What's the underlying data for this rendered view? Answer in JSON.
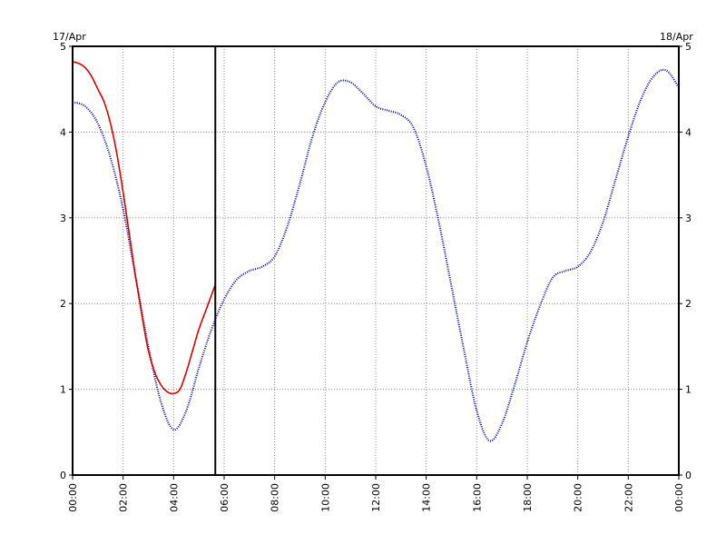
{
  "chart_data": {
    "type": "line",
    "date_start": "17/Apr",
    "date_end": "18/Apr",
    "xlim": [
      0,
      24
    ],
    "ylim": [
      0,
      5
    ],
    "yticks": [
      0,
      1,
      2,
      3,
      4,
      5
    ],
    "xticks": [
      "00:00",
      "02:00",
      "04:00",
      "06:00",
      "08:00",
      "10:00",
      "12:00",
      "14:00",
      "16:00",
      "18:00",
      "20:00",
      "22:00",
      "00:00"
    ],
    "grid": true,
    "now_marker_hour": 5.65,
    "series": [
      {
        "color": "#00009c",
        "style": "dotted",
        "x": [
          0,
          0.5,
          1,
          1.5,
          2,
          2.5,
          3,
          3.5,
          4,
          4.5,
          5,
          5.5,
          6,
          6.5,
          7,
          7.5,
          8,
          8.5,
          9,
          9.5,
          10,
          10.5,
          11,
          11.5,
          12,
          12.5,
          13,
          13.5,
          14,
          14.5,
          15,
          15.5,
          16,
          16.5,
          17,
          17.5,
          18,
          18.5,
          19,
          19.5,
          20,
          20.5,
          21,
          21.5,
          22,
          22.5,
          23,
          23.5,
          24
        ],
        "y": [
          4.35,
          4.3,
          4.1,
          3.7,
          3.1,
          2.3,
          1.5,
          0.85,
          0.53,
          0.75,
          1.25,
          1.7,
          2.05,
          2.28,
          2.38,
          2.43,
          2.55,
          2.9,
          3.4,
          3.95,
          4.35,
          4.58,
          4.58,
          4.45,
          4.3,
          4.25,
          4.2,
          4.05,
          3.6,
          2.95,
          2.2,
          1.45,
          0.75,
          0.4,
          0.6,
          1.05,
          1.55,
          1.97,
          2.3,
          2.38,
          2.43,
          2.6,
          2.95,
          3.45,
          3.95,
          4.38,
          4.65,
          4.72,
          4.52
        ]
      },
      {
        "color": "#dd0000",
        "style": "solid",
        "x": [
          0,
          0.25,
          0.5,
          0.75,
          1,
          1.25,
          1.5,
          1.75,
          2,
          2.25,
          2.5,
          2.75,
          3,
          3.25,
          3.5,
          3.75,
          4,
          4.25,
          4.5,
          4.75,
          5,
          5.25,
          5.5,
          5.65
        ],
        "y": [
          4.82,
          4.8,
          4.75,
          4.65,
          4.5,
          4.35,
          4.1,
          3.75,
          3.3,
          2.8,
          2.3,
          1.85,
          1.45,
          1.2,
          1.05,
          0.97,
          0.95,
          1.0,
          1.2,
          1.45,
          1.7,
          1.9,
          2.1,
          2.22
        ]
      }
    ]
  }
}
